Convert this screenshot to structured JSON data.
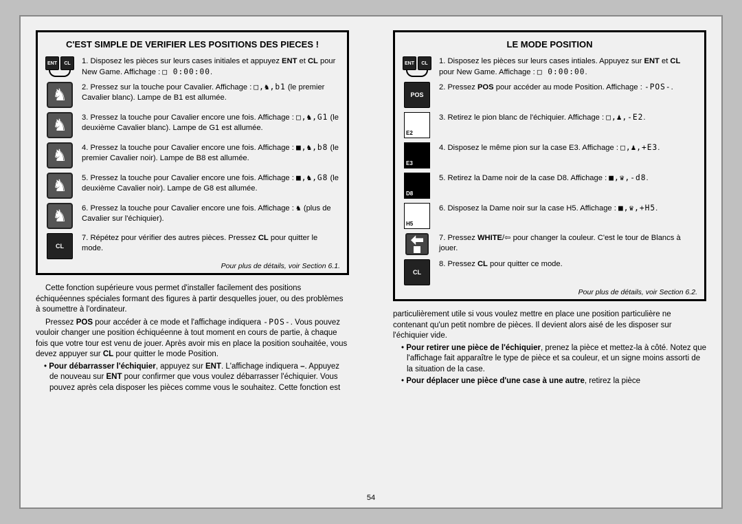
{
  "pageNumber": "54",
  "leftBox": {
    "title": "C'EST SIMPLE DE VERIFIER LES POSITIONS DES PIECES !",
    "steps": [
      {
        "icon": "entcl",
        "text": "1. Disposez les pièces sur leurs cases initiales et appuyez <b>ENT</b> et <b>CL</b> pour New Game. Affichage : <span class='seg'>□ 0:00:00</span>."
      },
      {
        "icon": "knight",
        "text": "2. Pressez sur la touche pour Cavalier. Affichage : <span class='seg'>□,♞,b1</span> (le premier Cavalier blanc). Lampe de B1 est allumée."
      },
      {
        "icon": "knight",
        "text": "3. Pressez la touche pour Cavalier encore une fois. Affichage : <span class='seg'>□,♞,G1</span> (le deuxième Cavalier blanc). Lampe de G1 est allumée."
      },
      {
        "icon": "knight",
        "text": "4. Pressez la touche pour Cavalier encore une fois. Affichage : <span class='seg'>■,♞,b8</span> (le premier Cavalier noir). Lampe de B8 est allumée."
      },
      {
        "icon": "knight",
        "text": "5. Pressez la touche pour Cavalier encore une fois. Affichage : <span class='seg'>■,♞,G8</span> (le deuxième Cavalier noir). Lampe de G8 est allumée."
      },
      {
        "icon": "knight",
        "text": "6. Pressez la touche pour Cavalier encore une fois. Affichage : <span class='seg'>♞</span> (plus de Cavalier sur l'échiquier)."
      },
      {
        "icon": "cl",
        "text": "7. Répétez pour vérifier des autres pièces. Pressez <b>CL</b> pour quitter le mode."
      }
    ],
    "footnote": "Pour plus de détails, voir Section 6.1."
  },
  "leftBody": {
    "p1": "Cette fonction supérieure vous permet d'installer facilement des positions échiquéennes spéciales formant des figures à partir desquelles jouer, ou des problèmes à soumettre à l'ordinateur.",
    "p2html": "Pressez <b>POS</b> pour accéder à ce mode et l'affichage indiquera <span class='seg'>-POS-</span>. Vous pouvez vouloir changer une position échiquéenne à tout moment en cours de partie, à chaque fois que votre tour est venu de jouer. Après avoir mis en place la position souhaitée, vous devez appuyer sur <b>CL</b> pour quitter le mode Position.",
    "b1html": "• <b>Pour débarrasser l'échiquier</b>, appuyez sur <b>ENT</b>. L'affichage indiquera <b>–</b>. Appuyez de nouveau sur <b>ENT</b> pour confirmer que vous voulez débarrasser l'échiquier. Vous pouvez après cela disposer les pièces comme vous le souhaitez. Cette fonction est"
  },
  "rightBox": {
    "title": "LE MODE POSITION",
    "steps": [
      {
        "icon": "entcl",
        "text": "1. Disposez les pièces sur leurs cases intiales. Appuyez sur <b>ENT</b> et <b>CL</b> pour New Game. Affichage : <span class='seg'>□ 0:00:00</span>."
      },
      {
        "icon": "pos",
        "text": "2. Pressez <b>POS</b> pour accéder au mode Position. Affichage : <span class='seg'>-POS-</span>."
      },
      {
        "icon": "sq-white",
        "label": "E2",
        "text": "3. Retirez le pion blanc de l'échiquier. Affichage : <span class='seg'>□,♟,-E2</span>."
      },
      {
        "icon": "sq-black",
        "label": "E3",
        "text": "4. Disposez le même pion sur la case E3. Affichage : <span class='seg'>□,♟,+E3</span>."
      },
      {
        "icon": "sq-black",
        "label": "D8",
        "text": "5. Retirez la Dame noir de la case D8. Affichage : <span class='seg'>■,♛,-d8</span>."
      },
      {
        "icon": "sq-white",
        "label": "H5",
        "text": "6. Disposez la Dame noir sur la case H5. Affichage : <span class='seg'>■,♛,+H5</span>."
      },
      {
        "icon": "white-arrow",
        "text": "7. Pressez <b>WHITE</b>/⇦ pour changer la couleur. C'est le tour de Blancs à jouer."
      },
      {
        "icon": "cl",
        "text": "8. Pressez <b>CL</b> pour quitter ce mode."
      }
    ],
    "footnote": "Pour plus de détails, voir Section 6.2."
  },
  "rightBody": {
    "p1": "particulièrement utile si vous voulez mettre en place une position particulière ne contenant qu'un petit nombre de pièces. Il devient alors aisé de les disposer sur l'échiquier vide.",
    "b1html": "• <b>Pour retirer une pièce de l'échiquier</b>, prenez la pièce et mettez-la à côté. Notez que l'affichage fait apparaître le type de pièce et sa couleur, et un signe moins assorti de la situation de la case.",
    "b2html": "• <b>Pour déplacer une pièce d'une case à une autre</b>, retirez la pièce"
  },
  "keys": {
    "ENT": "ENT",
    "CL": "CL",
    "POS": "POS"
  }
}
